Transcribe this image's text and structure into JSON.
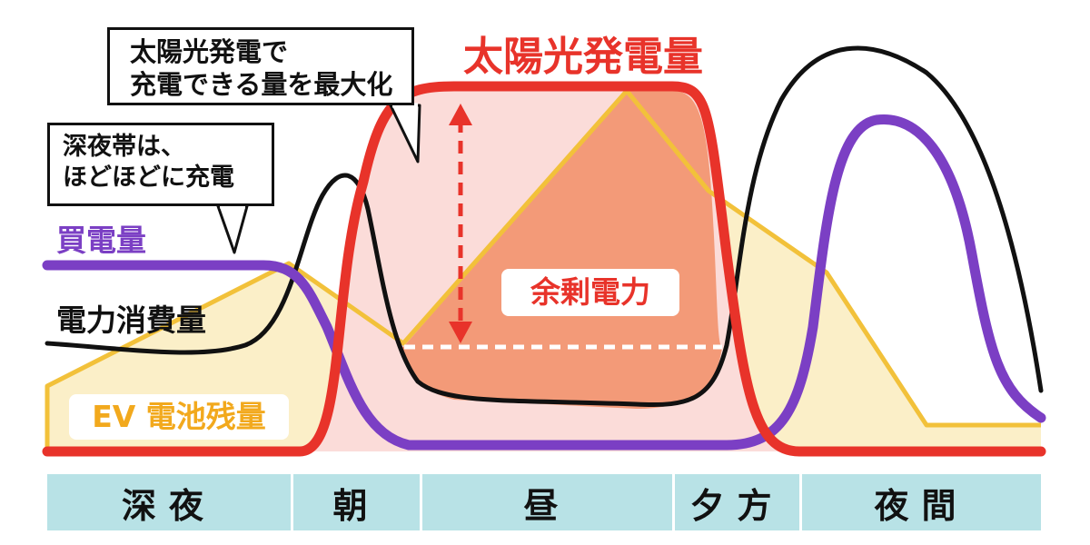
{
  "title": "太陽光発電量",
  "callouts": {
    "solar_line1": "太陽光発電で",
    "solar_line2": "充電できる量を最大化",
    "night_line1": "深夜帯は、",
    "night_line2": "ほどほどに充電"
  },
  "labels": {
    "buy": "買電量",
    "consumption": "電力消費量",
    "ev_battery": "EV 電池残量",
    "surplus": "余剰電力"
  },
  "time_periods": [
    "深夜",
    "朝",
    "昼",
    "夕方",
    "夜間"
  ],
  "colors": {
    "solar": "#e8332a",
    "buy": "#7b3fc4",
    "consumption": "#111111",
    "ev_battery_fill": "#fbefc8",
    "ev_battery_line": "#f2c13a",
    "surplus_fill": "#f39a78",
    "solar_area_fill": "#fbdcd9",
    "time_bar": "#b8e2e6"
  }
}
